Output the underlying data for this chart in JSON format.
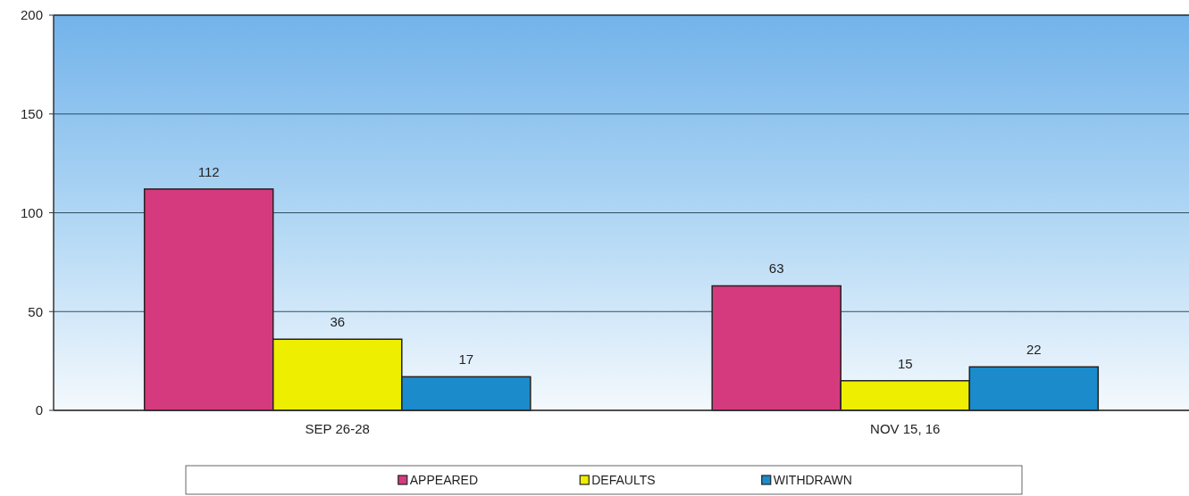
{
  "chart_data": {
    "type": "bar",
    "categories": [
      "SEP 26-28",
      "NOV 15, 16"
    ],
    "series": [
      {
        "name": "APPEARED",
        "color": "#d63a7e",
        "values": [
          112,
          63
        ]
      },
      {
        "name": "DEFAULTS",
        "color": "#eeee00",
        "values": [
          36,
          15
        ]
      },
      {
        "name": "WITHDRAWN",
        "color": "#1b8bcb",
        "values": [
          17,
          22
        ]
      }
    ],
    "ylim": [
      0,
      200
    ],
    "yticks": [
      0,
      50,
      100,
      150,
      200
    ],
    "grid": "y",
    "legend": "bottom",
    "data_labels": true
  }
}
